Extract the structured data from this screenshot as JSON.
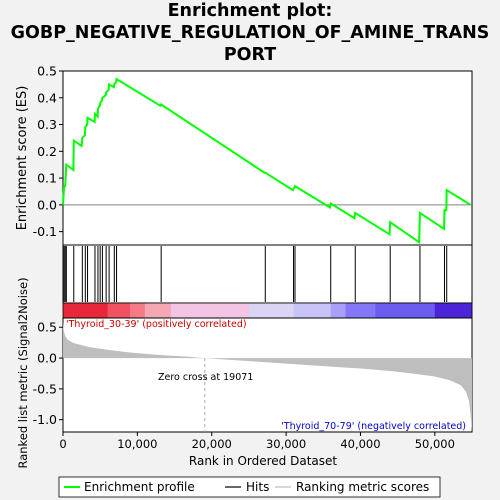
{
  "title_lines": [
    "Enrichment plot:",
    "GOBP_NEGATIVE_REGULATION_OF_AMINE_TRANS",
    "PORT"
  ],
  "colors": {
    "background": "#f2f2f2",
    "panel": "#ffffff",
    "es_line": "#00ff00",
    "hits": "#000000",
    "metric_fill": "#bebebe",
    "zero_cross_line": "#aaaaaa",
    "pos_label": "#cc0000",
    "neg_label": "#0000cc"
  },
  "chart_data": {
    "type": "line",
    "ylabel_top": "Enrichment score (ES)",
    "ylabel_bottom": "Ranked list metric (Signal2Noise)",
    "xlabel": "Rank in Ordered Dataset",
    "xlim": [
      0,
      55000
    ],
    "ylim_es": [
      -0.15,
      0.5
    ],
    "ylim_metric": [
      -1.2,
      0.65
    ],
    "x_ticks": [
      0,
      10000,
      20000,
      30000,
      40000,
      50000
    ],
    "x_tick_labels": [
      "0",
      "10,000",
      "20,000",
      "30,000",
      "40,000",
      "50,000"
    ],
    "es_ticks": [
      -0.1,
      0.0,
      0.1,
      0.2,
      0.3,
      0.4,
      0.5
    ],
    "es_tick_labels": [
      "-0.1",
      "0.0",
      "0.1",
      "0.2",
      "0.3",
      "0.4",
      "0.5"
    ],
    "metric_ticks": [
      -1.0,
      -0.5,
      0.0,
      0.5
    ],
    "metric_tick_labels": [
      "-1.0",
      "-0.5",
      "0.0",
      "0.5"
    ],
    "hits": [
      150,
      300,
      450,
      1450,
      2600,
      3000,
      3300,
      4300,
      4700,
      5000,
      5300,
      5800,
      6200,
      6900,
      7200,
      13200,
      27200,
      31000,
      31200,
      36000,
      39300,
      44000,
      48000,
      51300,
      51600
    ],
    "es_series": {
      "name": "Enrichment profile",
      "x": [
        0,
        150,
        300,
        400,
        450,
        1400,
        1450,
        2500,
        2600,
        2950,
        3000,
        3250,
        3300,
        4250,
        4300,
        4650,
        4700,
        4950,
        5000,
        5250,
        5300,
        5750,
        5800,
        6150,
        6200,
        6850,
        6900,
        7150,
        7200,
        13100,
        13200,
        27100,
        27200,
        30900,
        31000,
        31150,
        31200,
        35900,
        36000,
        39200,
        39300,
        43900,
        44000,
        47900,
        48000,
        51250,
        51300,
        51550,
        51600,
        54800
      ],
      "y": [
        0.0,
        0.07,
        0.07,
        0.13,
        0.15,
        0.13,
        0.24,
        0.22,
        0.25,
        0.26,
        0.29,
        0.3,
        0.325,
        0.31,
        0.34,
        0.33,
        0.36,
        0.37,
        0.38,
        0.39,
        0.4,
        0.41,
        0.42,
        0.43,
        0.45,
        0.44,
        0.45,
        0.46,
        0.47,
        0.37,
        0.375,
        0.12,
        0.12,
        0.055,
        0.06,
        0.065,
        0.07,
        -0.01,
        0.005,
        -0.05,
        -0.03,
        -0.11,
        -0.065,
        -0.14,
        -0.03,
        -0.09,
        -0.02,
        -0.02,
        0.055,
        0.0
      ]
    },
    "metric_series": {
      "name": "Ranking metric scores",
      "x": [
        0,
        100,
        300,
        600,
        1000,
        1500,
        2500,
        3500,
        5000,
        7000,
        9000,
        11000,
        13000,
        15000,
        17000,
        19071,
        25000,
        30000,
        35000,
        40000,
        44000,
        47000,
        50000,
        52000,
        53500,
        54200,
        54600,
        54800,
        55000
      ],
      "y": [
        0.6,
        0.45,
        0.36,
        0.3,
        0.27,
        0.24,
        0.21,
        0.18,
        0.15,
        0.12,
        0.09,
        0.07,
        0.05,
        0.035,
        0.02,
        0.0,
        -0.05,
        -0.09,
        -0.13,
        -0.17,
        -0.21,
        -0.25,
        -0.3,
        -0.36,
        -0.44,
        -0.55,
        -0.7,
        -0.9,
        -1.2
      ]
    },
    "zero_cross_label": "Zero cross at 19071",
    "zero_cross_x": 19071,
    "pos_group_label": "'Thyroid_30-39' (positively correlated)",
    "neg_group_label": "'Thyroid_70-79' (negatively correlated)",
    "heat_band_colors": [
      "#e8283a",
      "#f05060",
      "#f47a86",
      "#f4a8b4",
      "#f4c4e4",
      "#dcd4f4",
      "#c8c4f8",
      "#a8a0f8",
      "#8478f8",
      "#6c5cf0",
      "#4c24d8"
    ],
    "heat_band_stops": [
      0,
      6000,
      9000,
      11000,
      14500,
      25000,
      31000,
      36000,
      38000,
      42000,
      50000,
      55000
    ],
    "legend": [
      {
        "label": "Enrichment profile",
        "kind": "line-green"
      },
      {
        "label": "Hits",
        "kind": "line-black"
      },
      {
        "label": "Ranking metric scores",
        "kind": "line-gray"
      }
    ]
  }
}
